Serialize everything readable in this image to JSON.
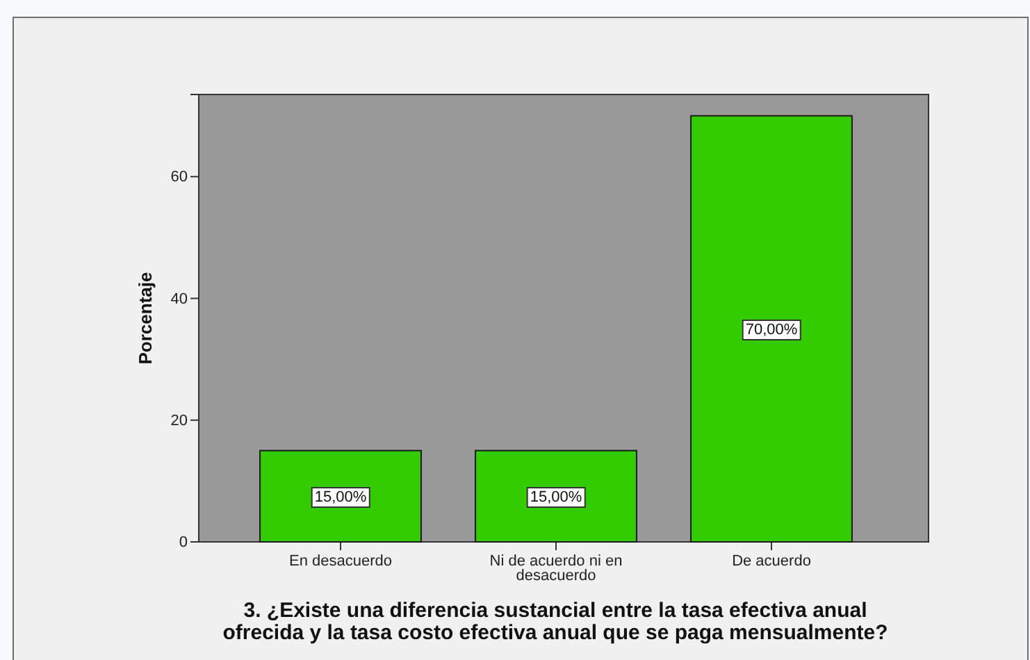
{
  "chart_data": {
    "type": "bar",
    "xlabel": "3. ¿Existe una diferencia sustancial entre la tasa efectiva anual ofrecida y la tasa costo efectiva anual que se paga mensualmente?",
    "ylabel": "Porcentaje",
    "categories": [
      "En desacuerdo",
      "Ni de acuerdo ni en desacuerdo",
      "De acuerdo"
    ],
    "values": [
      15,
      15,
      70
    ],
    "value_labels": [
      "15,00%",
      "15,00%",
      "70,00%"
    ],
    "color": "#33cc00",
    "ylim": [
      0,
      73.5
    ],
    "yticks": [
      0,
      20,
      40,
      60
    ]
  }
}
